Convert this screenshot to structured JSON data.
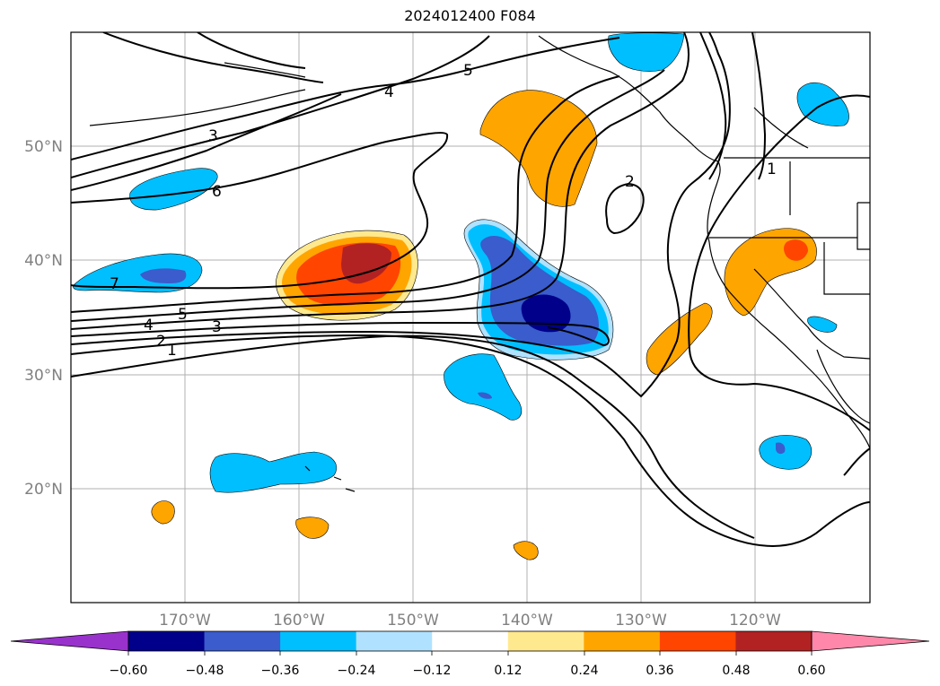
{
  "title": "2024012400 F084",
  "map": {
    "lon_range": [
      -180,
      -110
    ],
    "lat_range": [
      10,
      60
    ],
    "lon_ticks": [
      "170°W",
      "160°W",
      "150°W",
      "140°W",
      "130°W",
      "120°W"
    ],
    "lat_ticks": [
      "50°N",
      "40°N",
      "30°N",
      "20°N"
    ],
    "gridlines": true,
    "contour_labels": [
      "1",
      "2",
      "3",
      "4",
      "5",
      "6",
      "7",
      "5",
      "4",
      "3",
      "2",
      "1"
    ]
  },
  "colorbar": {
    "ticks": [
      "−0.60",
      "−0.48",
      "−0.36",
      "−0.24",
      "−0.12",
      "0.12",
      "0.24",
      "0.36",
      "0.48",
      "0.60"
    ],
    "colors": [
      "#9932cc",
      "#00008b",
      "#3a5ccc",
      "#00bfff",
      "#b0e2ff",
      "#ffffff",
      "#ffe98f",
      "#ffa500",
      "#ff4500",
      "#b22222",
      "#ff88aa"
    ],
    "extend": "both"
  }
}
